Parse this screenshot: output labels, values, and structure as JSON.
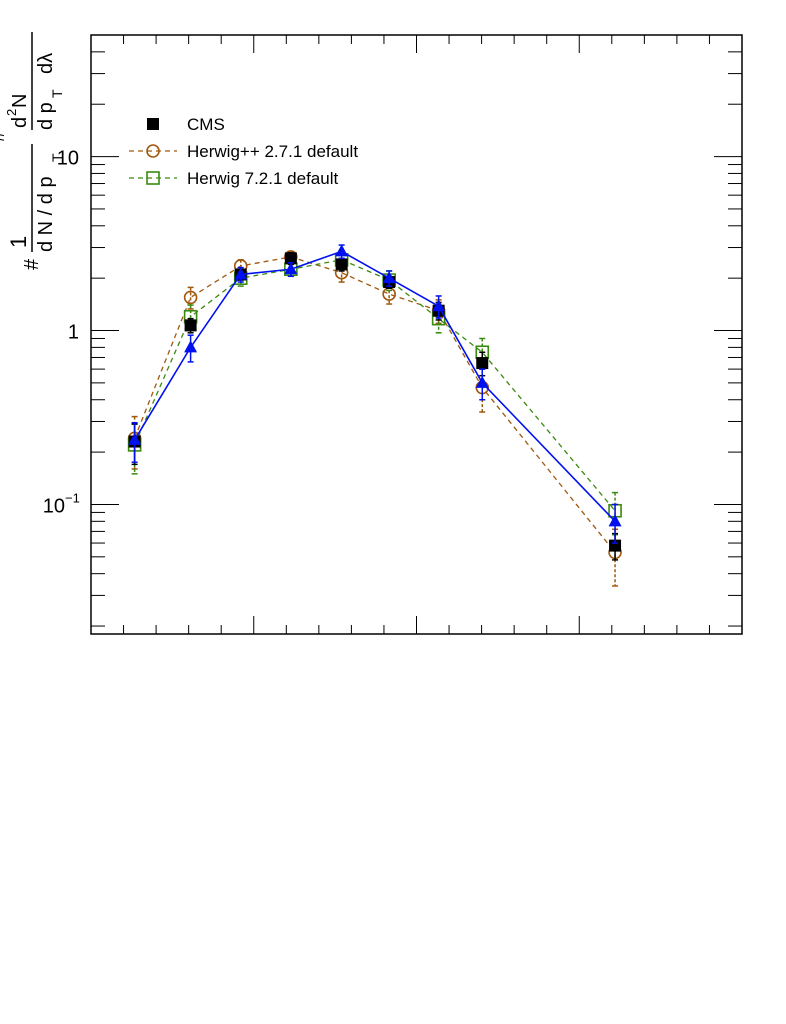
{
  "chart_data": {
    "type": "line",
    "title": "",
    "xlabel": "",
    "y_scale": "log",
    "ylim": [
      0.018,
      50
    ],
    "xlim": [
      0.0,
      1.0
    ],
    "grid": false,
    "legend_position": "top-left",
    "ylabel": {
      "fraction_numer": "1",
      "fraction_denom": "d N / d p",
      "denom_sub": "T",
      "d2n_numer": "d",
      "d2n_sup": "2",
      "d2n_n": "N",
      "d2n_denom": "d p",
      "d2n_denom_sub": "T",
      "d2n_lambda": "dλ",
      "hash1": "#",
      "hash2": "#"
    },
    "y_ticks": [
      {
        "value": 0.1,
        "base": "10",
        "exp": "−1"
      },
      {
        "value": 1,
        "base": "1",
        "exp": ""
      },
      {
        "value": 10,
        "base": "10",
        "exp": ""
      }
    ],
    "x": [
      0.067,
      0.153,
      0.23,
      0.307,
      0.385,
      0.458,
      0.534,
      0.601,
      0.805
    ],
    "series": [
      {
        "name": "CMS",
        "marker": "filled-square",
        "color": "#000000",
        "line": "none",
        "values": [
          0.23,
          1.07,
          2.1,
          2.6,
          2.4,
          1.9,
          1.3,
          0.65,
          0.058
        ],
        "err": [
          0.06,
          0.1,
          0.15,
          0.2,
          0.2,
          0.15,
          0.15,
          0.1,
          0.01
        ]
      },
      {
        "name": "Herwig++ 2.7.1 default",
        "marker": "open-circle",
        "color": "#a0580f",
        "line": "dashed",
        "values": [
          0.24,
          1.55,
          2.35,
          2.65,
          2.15,
          1.62,
          1.3,
          0.47,
          0.053
        ],
        "err": [
          0.08,
          0.22,
          0.2,
          0.2,
          0.25,
          0.2,
          0.2,
          0.13,
          0.019
        ]
      },
      {
        "name": "Herwig 7.2.1 default",
        "marker": "open-square",
        "color": "#3a8a10",
        "line": "dashed",
        "values": [
          0.22,
          1.2,
          2.0,
          2.25,
          2.55,
          1.95,
          1.17,
          0.75,
          0.092
        ],
        "err": [
          0.07,
          0.2,
          0.2,
          0.2,
          0.25,
          0.25,
          0.2,
          0.15,
          0.025
        ]
      },
      {
        "name": "",
        "marker": "filled-triangle",
        "color": "#0010ee",
        "line": "solid",
        "values": [
          0.235,
          0.8,
          2.1,
          2.25,
          2.85,
          2.0,
          1.38,
          0.5,
          0.08
        ],
        "err": [
          0.06,
          0.14,
          0.2,
          0.2,
          0.25,
          0.2,
          0.2,
          0.1,
          0.02
        ]
      }
    ]
  }
}
